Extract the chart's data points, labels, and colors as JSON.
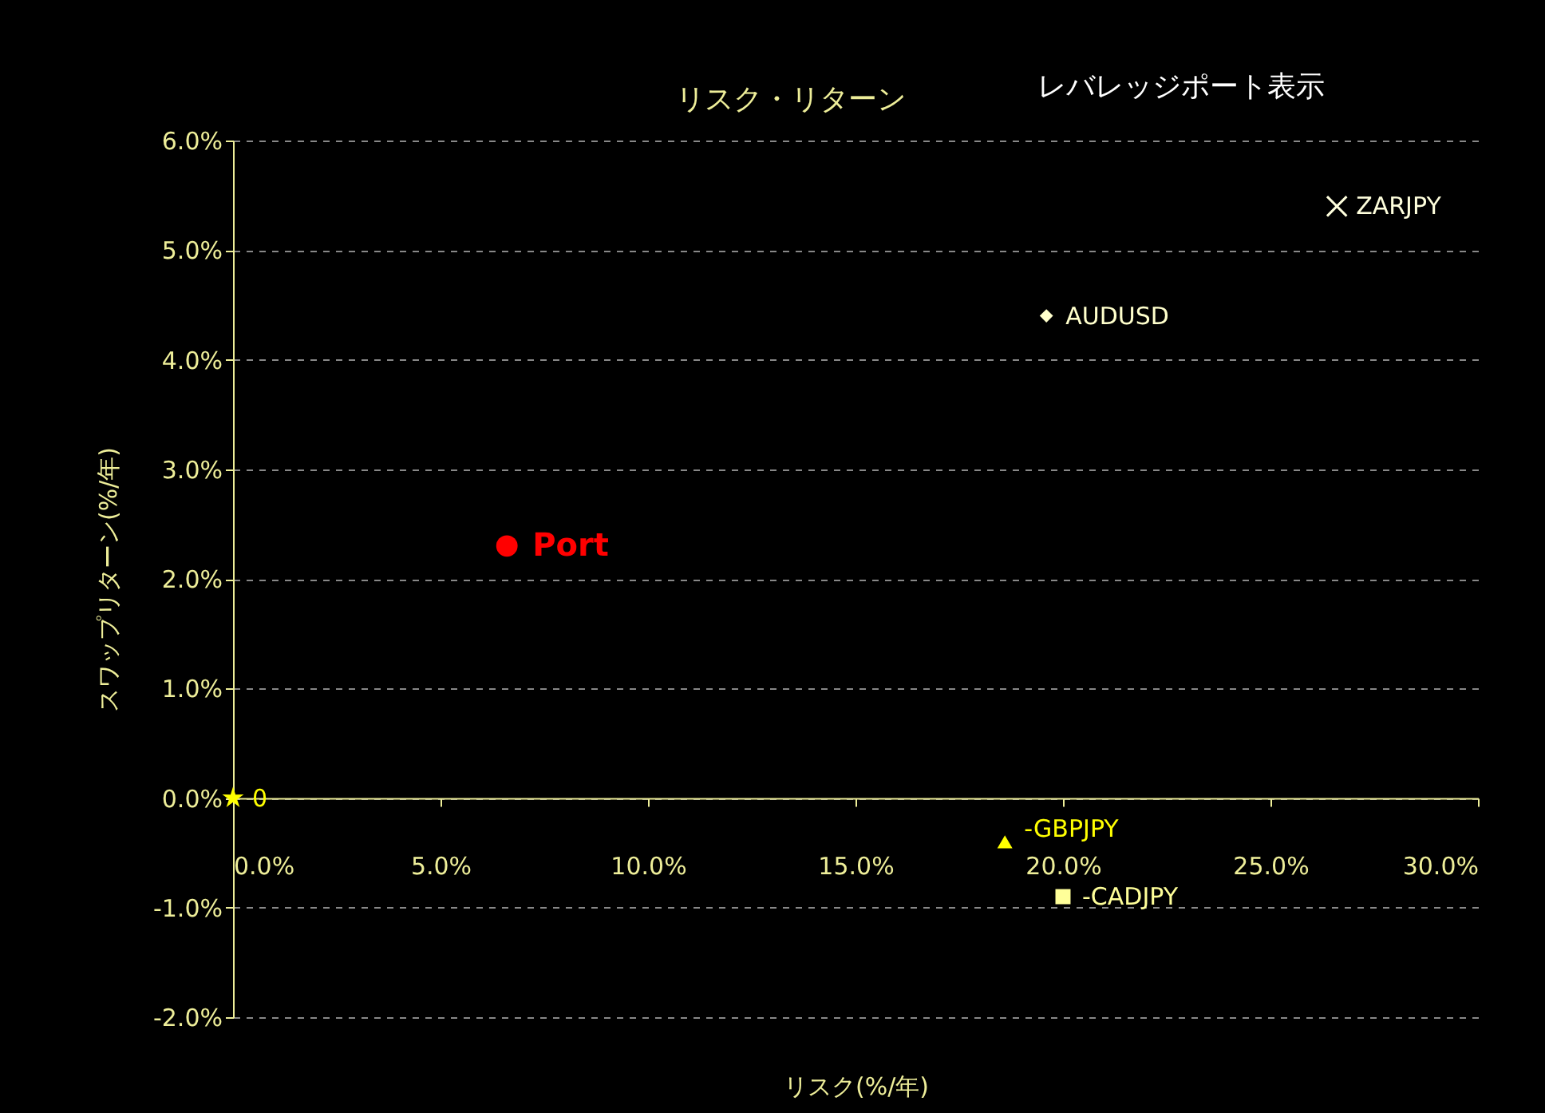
{
  "chart_data": {
    "type": "scatter",
    "title": "リスク・リターン",
    "xlabel": "リスク(%/年)",
    "ylabel": "スワップリターン(%/年)",
    "annotations": [
      "レバレッジポート表示"
    ],
    "xlim": [
      0,
      30
    ],
    "ylim": [
      -2,
      6
    ],
    "xticks": [
      {
        "value": 0,
        "label": "0.0%"
      },
      {
        "value": 5,
        "label": "5.0%"
      },
      {
        "value": 10,
        "label": "10.0%"
      },
      {
        "value": 15,
        "label": "15.0%"
      },
      {
        "value": 20,
        "label": "20.0%"
      },
      {
        "value": 25,
        "label": "25.0%"
      },
      {
        "value": 30,
        "label": "30.0%"
      }
    ],
    "yticks": [
      {
        "value": -2,
        "label": "-2.0%"
      },
      {
        "value": -1,
        "label": "-1.0%"
      },
      {
        "value": 0,
        "label": "0.0%"
      },
      {
        "value": 1,
        "label": "1.0%"
      },
      {
        "value": 2,
        "label": "2.0%"
      },
      {
        "value": 3,
        "label": "3.0%"
      },
      {
        "value": 4,
        "label": "4.0%"
      },
      {
        "value": 5,
        "label": "5.0%"
      },
      {
        "value": 6,
        "label": "6.0%"
      }
    ],
    "grid": "y",
    "series": [
      {
        "name": "0",
        "color": "#ffff00",
        "marker": "star",
        "x": [
          0
        ],
        "values": [
          0
        ]
      },
      {
        "name": "Port",
        "color": "#ff0000",
        "marker": "circle",
        "x": [
          6.6
        ],
        "values": [
          2.3
        ]
      },
      {
        "name": "AUDUSD",
        "color": "#ffffcc",
        "marker": "diamond",
        "x": [
          19.6
        ],
        "values": [
          4.4
        ]
      },
      {
        "name": "ZARJPY",
        "color": "#ffffdd",
        "marker": "cross",
        "x": [
          26.6
        ],
        "values": [
          5.4
        ]
      },
      {
        "name": "-GBPJPY",
        "color": "#ffff00",
        "marker": "triangle",
        "x": [
          18.6
        ],
        "values": [
          -0.4
        ]
      },
      {
        "name": "-CADJPY",
        "color": "#ffff99",
        "marker": "square",
        "x": [
          20.0
        ],
        "values": [
          -0.9
        ]
      }
    ]
  }
}
